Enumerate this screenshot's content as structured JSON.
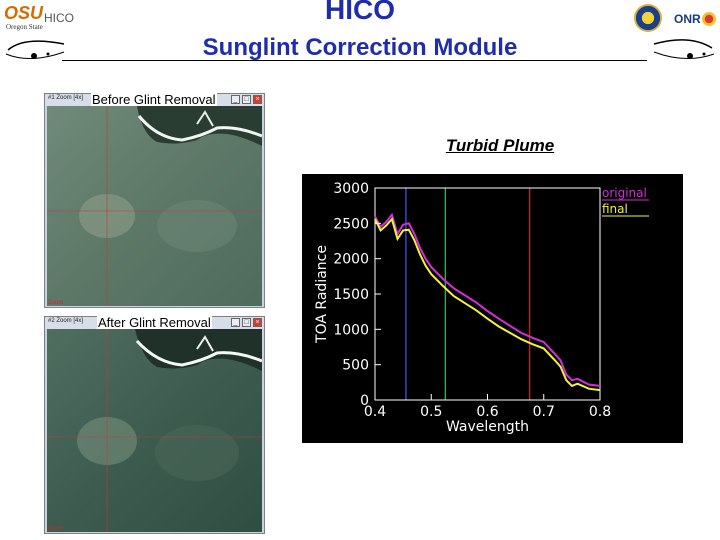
{
  "slide": {
    "title": "HICO",
    "subtitle": "Sunglint Correction Module"
  },
  "logos": {
    "left_mark": "OSU",
    "left_sub": "Oregon State",
    "left_text": "HICO",
    "right_text": "ONR"
  },
  "windows": [
    {
      "label": "Before Glint Removal",
      "bar_text": "#1 Zoom [4x]",
      "footer": "Zoom"
    },
    {
      "label": "After Glint Removal",
      "bar_text": "#2 Zoom [4x]",
      "footer": "Zoom"
    }
  ],
  "chart_heading": "Turbid Plume",
  "chart_data": {
    "type": "line",
    "xlabel": "Wavelength",
    "ylabel": "TOA Radiance",
    "xlim": [
      0.4,
      0.8
    ],
    "ylim": [
      0,
      3000
    ],
    "x_ticks": [
      "0.4",
      "0.5",
      "0.6",
      "0.7",
      "0.8"
    ],
    "y_ticks": [
      "0",
      "500",
      "1000",
      "1500",
      "2000",
      "2500",
      "3000"
    ],
    "legend": [
      "original",
      "final"
    ],
    "legend_position": "top-right",
    "vertical_markers": [
      {
        "x": 0.455,
        "color": "#3b5bff"
      },
      {
        "x": 0.525,
        "color": "#2ec84a"
      },
      {
        "x": 0.675,
        "color": "#e02020"
      }
    ],
    "series": [
      {
        "name": "original",
        "color": "#d22fd6",
        "x": [
          0.4,
          0.41,
          0.42,
          0.43,
          0.44,
          0.45,
          0.46,
          0.47,
          0.48,
          0.49,
          0.5,
          0.52,
          0.54,
          0.56,
          0.58,
          0.6,
          0.62,
          0.64,
          0.66,
          0.68,
          0.7,
          0.72,
          0.73,
          0.74,
          0.75,
          0.76,
          0.78,
          0.8
        ],
        "values": [
          2600,
          2450,
          2520,
          2620,
          2350,
          2480,
          2500,
          2350,
          2150,
          2000,
          1880,
          1720,
          1580,
          1480,
          1380,
          1260,
          1150,
          1050,
          950,
          880,
          820,
          650,
          560,
          360,
          280,
          300,
          220,
          200
        ]
      },
      {
        "name": "final",
        "color": "#f2f23a",
        "x": [
          0.4,
          0.41,
          0.42,
          0.43,
          0.44,
          0.45,
          0.46,
          0.47,
          0.48,
          0.49,
          0.5,
          0.52,
          0.54,
          0.56,
          0.58,
          0.6,
          0.62,
          0.64,
          0.66,
          0.68,
          0.7,
          0.72,
          0.73,
          0.74,
          0.75,
          0.76,
          0.78,
          0.8
        ],
        "values": [
          2560,
          2400,
          2470,
          2560,
          2280,
          2400,
          2410,
          2260,
          2060,
          1900,
          1780,
          1620,
          1470,
          1370,
          1270,
          1150,
          1040,
          950,
          860,
          790,
          730,
          560,
          470,
          280,
          200,
          230,
          160,
          140
        ]
      }
    ]
  }
}
